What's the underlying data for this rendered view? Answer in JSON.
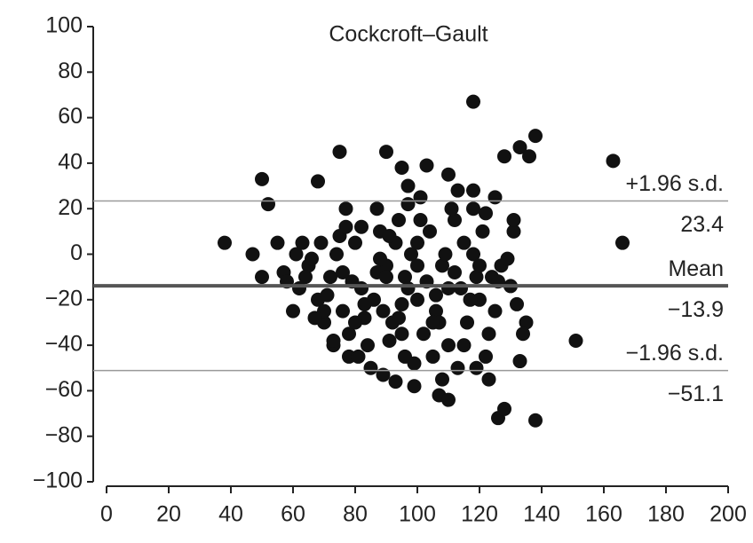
{
  "chart_data": {
    "type": "scatter",
    "title": "Cockcroft–Gault",
    "xlim": [
      0,
      200
    ],
    "xticks": [
      0,
      20,
      40,
      60,
      80,
      100,
      120,
      140,
      160,
      180,
      200
    ],
    "ylim": [
      -100,
      100
    ],
    "yticks": [
      {
        "value": -100,
        "label": "−100"
      },
      {
        "value": -80,
        "label": "−80"
      },
      {
        "value": -60,
        "label": "−60"
      },
      {
        "value": -40,
        "label": "−40"
      },
      {
        "value": -20,
        "label": "−20"
      },
      0,
      20,
      40,
      60,
      80,
      100
    ],
    "reference_lines": [
      {
        "name": "+1.96 s.d.",
        "value": 23.4,
        "value_label": "23.4"
      },
      {
        "name": "Mean",
        "value": -13.9,
        "value_label": "−13.9"
      },
      {
        "name": "−1.96 s.d.",
        "value": -51.1,
        "value_label": "−51.1"
      }
    ],
    "series": [
      {
        "color": "#111111",
        "x": [
          38,
          47,
          50,
          50,
          52,
          55,
          57,
          60,
          63,
          68,
          75,
          77,
          78,
          90,
          95,
          97,
          103,
          110,
          118,
          118,
          125,
          128,
          133,
          136,
          138,
          163,
          166,
          151,
          138,
          126,
          128,
          133,
          135,
          132,
          130,
          107,
          110,
          89,
          93,
          123,
          62,
          65,
          68,
          70,
          72,
          74,
          76,
          78,
          80,
          82,
          84,
          86,
          88,
          90,
          92,
          94,
          96,
          98,
          100,
          102,
          104,
          106,
          108,
          110,
          112,
          114,
          116,
          118,
          120,
          122,
          66,
          71,
          75,
          79,
          83,
          87,
          91,
          95,
          99,
          103,
          107,
          111,
          115,
          119,
          123,
          127,
          131,
          73,
          81,
          89,
          93,
          97,
          101,
          105,
          109,
          113,
          117,
          121,
          125,
          129,
          85,
          95,
          105,
          115,
          80,
          90,
          100,
          110,
          120,
          76,
          82,
          88,
          94,
          100,
          106,
          112,
          118,
          124,
          70,
          64,
          58,
          61,
          67,
          69,
          73,
          77,
          83,
          87,
          91,
          97,
          101,
          108,
          113,
          119,
          122,
          126,
          131,
          134,
          99,
          96
        ],
        "values": [
          5,
          0,
          -10,
          33,
          22,
          5,
          -8,
          -25,
          5,
          32,
          45,
          20,
          -45,
          45,
          38,
          30,
          39,
          35,
          67,
          28,
          25,
          43,
          47,
          43,
          52,
          41,
          5,
          -38,
          -73,
          -72,
          -68,
          -47,
          -30,
          -22,
          -14,
          -62,
          -64,
          -53,
          -56,
          -55,
          -15,
          -5,
          -20,
          -30,
          -10,
          0,
          -25,
          -35,
          5,
          -15,
          -40,
          -20,
          10,
          -5,
          -30,
          15,
          -45,
          0,
          -20,
          -35,
          10,
          -25,
          -5,
          -40,
          15,
          -15,
          -30,
          0,
          -20,
          -45,
          -2,
          -18,
          8,
          -12,
          -28,
          -8,
          -38,
          -22,
          -48,
          -12,
          -30,
          20,
          5,
          -10,
          -35,
          -5,
          10,
          -40,
          -45,
          -25,
          5,
          -15,
          15,
          -30,
          0,
          -50,
          -20,
          10,
          -25,
          -2,
          -50,
          -35,
          -45,
          -40,
          -30,
          -10,
          5,
          -15,
          -5,
          -8,
          12,
          -2,
          -28,
          -5,
          -18,
          -8,
          20,
          -10,
          -25,
          -10,
          -12,
          0,
          -28,
          5,
          -38,
          12,
          -22,
          20,
          8,
          22,
          25,
          -55,
          28,
          -50,
          18,
          -12,
          15,
          -35,
          -58,
          -10
        ]
      }
    ]
  }
}
